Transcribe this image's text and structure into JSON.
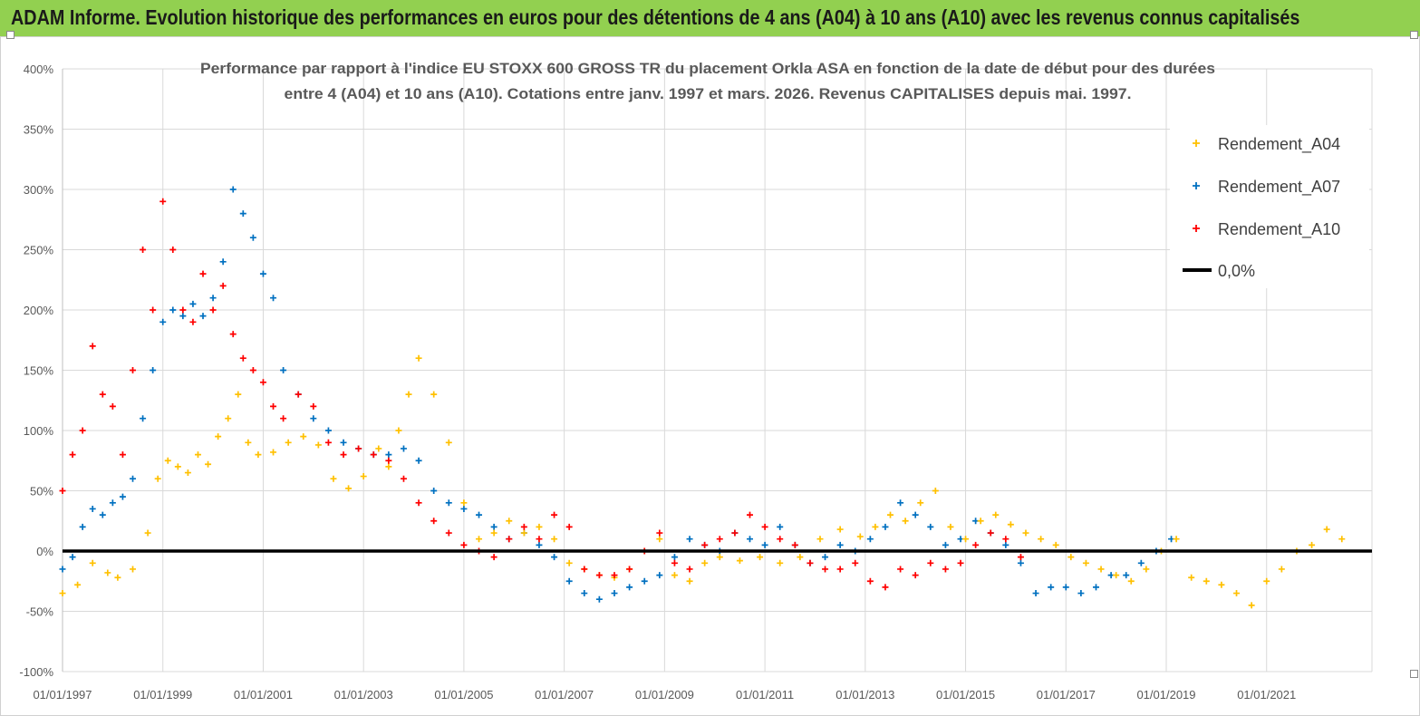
{
  "page": {
    "banner_title": "ADAM Informe. Evolution historique des performances en euros pour des détentions de 4 ans (A04) à 10 ans (A10) avec les revenus connus capitalisés"
  },
  "colors": {
    "banner": "#92d050",
    "A04": "#ffc000",
    "A07": "#0070c0",
    "A10": "#ff0000",
    "zero": "#000000",
    "grid": "#d9d9d9"
  },
  "chart_data": {
    "type": "scatter",
    "title_line1": "Performance par rapport à l'indice EU STOXX 600 GROSS TR  du placement Orkla ASA en fonction de la date de début pour des durées",
    "title_line2": "entre 4 (A04) et 10 ans (A10). Cotations entre janv. 1997 et mars. 2026. Revenus CAPITALISES depuis mai. 1997.",
    "xlabel": "",
    "ylabel": "",
    "x_range": [
      1997.0,
      2023.1
    ],
    "ylim": [
      -100,
      400
    ],
    "y_ticks": [
      "400%",
      "350%",
      "300%",
      "250%",
      "200%",
      "150%",
      "100%",
      "50%",
      "0%",
      "-50%",
      "-100%"
    ],
    "y_tick_values": [
      400,
      350,
      300,
      250,
      200,
      150,
      100,
      50,
      0,
      -50,
      -100
    ],
    "x_ticks": [
      "01/01/1997",
      "01/01/1999",
      "01/01/2001",
      "01/01/2003",
      "01/01/2005",
      "01/01/2007",
      "01/01/2009",
      "01/01/2011",
      "01/01/2013",
      "01/01/2015",
      "01/01/2017",
      "01/01/2019",
      "01/01/2021"
    ],
    "x_tick_values": [
      1997,
      1999,
      2001,
      2003,
      2005,
      2007,
      2009,
      2011,
      2013,
      2015,
      2017,
      2019,
      2021
    ],
    "grid": true,
    "legend_position": "top-right",
    "legend": [
      "Rendement_A04",
      "Rendement_A07",
      "Rendement_A10",
      "0,0%"
    ],
    "series": [
      {
        "name": "Rendement_A04",
        "color": "#ffc000",
        "x": [
          1997.0,
          1997.3,
          1997.6,
          1997.9,
          1998.1,
          1998.4,
          1998.7,
          1998.9,
          1999.1,
          1999.3,
          1999.5,
          1999.7,
          1999.9,
          2000.1,
          2000.3,
          2000.5,
          2000.7,
          2000.9,
          2001.2,
          2001.5,
          2001.8,
          2002.1,
          2002.4,
          2002.7,
          2003.0,
          2003.3,
          2003.5,
          2003.7,
          2003.9,
          2004.1,
          2004.4,
          2004.7,
          2005.0,
          2005.3,
          2005.6,
          2005.9,
          2006.2,
          2006.5,
          2006.8,
          2007.1,
          2007.4,
          2007.7,
          2008.0,
          2008.3,
          2008.6,
          2008.9,
          2009.2,
          2009.5,
          2009.8,
          2010.1,
          2010.5,
          2010.9,
          2011.3,
          2011.7,
          2012.1,
          2012.5,
          2012.9,
          2013.2,
          2013.5,
          2013.8,
          2014.1,
          2014.4,
          2014.7,
          2015.0,
          2015.3,
          2015.6,
          2015.9,
          2016.2,
          2016.5,
          2016.8,
          2017.1,
          2017.4,
          2017.7,
          2018.0,
          2018.3,
          2018.6,
          2018.9,
          2019.2,
          2019.5,
          2019.8,
          2020.1,
          2020.4,
          2020.7,
          2021.0,
          2021.3,
          2021.6,
          2021.9,
          2022.2,
          2022.5
        ],
        "values": [
          -35,
          -28,
          -10,
          -18,
          -22,
          -15,
          15,
          60,
          75,
          70,
          65,
          80,
          72,
          95,
          110,
          130,
          90,
          80,
          82,
          90,
          95,
          88,
          60,
          52,
          62,
          85,
          70,
          100,
          130,
          160,
          130,
          90,
          40,
          10,
          15,
          25,
          15,
          20,
          10,
          -10,
          -15,
          -20,
          -22,
          -15,
          0,
          10,
          -20,
          -25,
          -10,
          -5,
          -8,
          -5,
          -10,
          -5,
          10,
          18,
          12,
          20,
          30,
          25,
          40,
          50,
          20,
          10,
          25,
          30,
          22,
          15,
          10,
          5,
          -5,
          -10,
          -15,
          -20,
          -25,
          -15,
          0,
          10,
          -22,
          -25,
          -28,
          -35,
          -45,
          -25,
          -15,
          0,
          5,
          18,
          10
        ]
      },
      {
        "name": "Rendement_A07",
        "color": "#0070c0",
        "x": [
          1997.0,
          1997.2,
          1997.4,
          1997.6,
          1997.8,
          1998.0,
          1998.2,
          1998.4,
          1998.6,
          1998.8,
          1999.0,
          1999.2,
          1999.4,
          1999.6,
          1999.8,
          2000.0,
          2000.2,
          2000.4,
          2000.6,
          2000.8,
          2001.0,
          2001.2,
          2001.4,
          2001.7,
          2002.0,
          2002.3,
          2002.6,
          2002.9,
          2003.2,
          2003.5,
          2003.8,
          2004.1,
          2004.4,
          2004.7,
          2005.0,
          2005.3,
          2005.6,
          2005.9,
          2006.2,
          2006.5,
          2006.8,
          2007.1,
          2007.4,
          2007.7,
          2008.0,
          2008.3,
          2008.6,
          2008.9,
          2009.2,
          2009.5,
          2009.8,
          2010.1,
          2010.4,
          2010.7,
          2011.0,
          2011.3,
          2011.6,
          2011.9,
          2012.2,
          2012.5,
          2012.8,
          2013.1,
          2013.4,
          2013.7,
          2014.0,
          2014.3,
          2014.6,
          2014.9,
          2015.2,
          2015.5,
          2015.8,
          2016.1,
          2016.4,
          2016.7,
          2017.0,
          2017.3,
          2017.6,
          2017.9,
          2018.2,
          2018.5,
          2018.8,
          2019.1
        ],
        "values": [
          -15,
          -5,
          20,
          35,
          30,
          40,
          45,
          60,
          110,
          150,
          190,
          200,
          195,
          205,
          195,
          210,
          240,
          300,
          280,
          260,
          230,
          210,
          150,
          130,
          110,
          100,
          90,
          85,
          80,
          80,
          85,
          75,
          50,
          40,
          35,
          30,
          20,
          10,
          15,
          5,
          -5,
          -25,
          -35,
          -40,
          -35,
          -30,
          -25,
          -20,
          -5,
          10,
          5,
          0,
          15,
          10,
          5,
          20,
          5,
          -10,
          -5,
          5,
          0,
          10,
          20,
          40,
          30,
          20,
          5,
          10,
          25,
          15,
          5,
          -10,
          -35,
          -30,
          -30,
          -35,
          -30,
          -20,
          -20,
          -10,
          0,
          10
        ]
      },
      {
        "name": "Rendement_A10",
        "color": "#ff0000",
        "x": [
          1997.0,
          1997.2,
          1997.4,
          1997.6,
          1997.8,
          1998.0,
          1998.2,
          1998.4,
          1998.6,
          1998.8,
          1999.0,
          1999.2,
          1999.4,
          1999.6,
          1999.8,
          2000.0,
          2000.2,
          2000.4,
          2000.6,
          2000.8,
          2001.0,
          2001.2,
          2001.4,
          2001.7,
          2002.0,
          2002.3,
          2002.6,
          2002.9,
          2003.2,
          2003.5,
          2003.8,
          2004.1,
          2004.4,
          2004.7,
          2005.0,
          2005.3,
          2005.6,
          2005.9,
          2006.2,
          2006.5,
          2006.8,
          2007.1,
          2007.4,
          2007.7,
          2008.0,
          2008.3,
          2008.6,
          2008.9,
          2009.2,
          2009.5,
          2009.8,
          2010.1,
          2010.4,
          2010.7,
          2011.0,
          2011.3,
          2011.6,
          2011.9,
          2012.2,
          2012.5,
          2012.8,
          2013.1,
          2013.4,
          2013.7,
          2014.0,
          2014.3,
          2014.6,
          2014.9,
          2015.2,
          2015.5,
          2015.8,
          2016.1
        ],
        "values": [
          50,
          80,
          100,
          170,
          130,
          120,
          80,
          150,
          250,
          200,
          290,
          250,
          200,
          190,
          230,
          200,
          220,
          180,
          160,
          150,
          140,
          120,
          110,
          130,
          120,
          90,
          80,
          85,
          80,
          75,
          60,
          40,
          25,
          15,
          5,
          0,
          -5,
          10,
          20,
          10,
          30,
          20,
          -15,
          -20,
          -20,
          -15,
          0,
          15,
          -10,
          -15,
          5,
          10,
          15,
          30,
          20,
          10,
          5,
          -10,
          -15,
          -15,
          -10,
          -25,
          -30,
          -15,
          -20,
          -10,
          -15,
          -10,
          5,
          15,
          10,
          -5
        ]
      },
      {
        "name": "0,0%",
        "color": "#000000",
        "x": [
          1997.0,
          2023.1
        ],
        "values": [
          0,
          0
        ]
      }
    ]
  }
}
